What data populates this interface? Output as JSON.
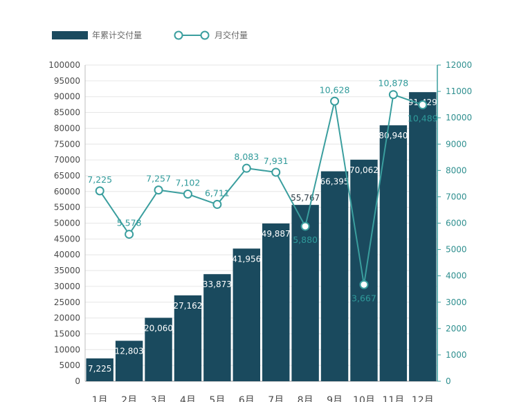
{
  "chart_data": {
    "type": "bar",
    "categories": [
      "1月",
      "2月",
      "3月",
      "4月",
      "5月",
      "6月",
      "7月",
      "8月",
      "9月",
      "10月",
      "11月",
      "12月"
    ],
    "series": [
      {
        "name": "年累计交付量",
        "type": "bar",
        "axis": "left",
        "values": [
          7225,
          12803,
          20060,
          27162,
          33873,
          41956,
          49887,
          55767,
          66395,
          70062,
          80940,
          91429
        ],
        "labels": [
          "7,225",
          "12,803",
          "20,060",
          "27,162",
          "33,873",
          "41,956",
          "49,887",
          "55,767",
          "66,395",
          "70,062",
          "80,940",
          "91,429"
        ],
        "color": "#1a4a5e"
      },
      {
        "name": "月交付量",
        "type": "line",
        "axis": "right",
        "values": [
          7225,
          5578,
          7257,
          7102,
          6711,
          8083,
          7931,
          5880,
          10628,
          3667,
          10878,
          10489
        ],
        "labels": [
          "7,225",
          "5,578",
          "7,257",
          "7,102",
          "6,711",
          "8,083",
          "7,931",
          "5,880",
          "10,628",
          "3,667",
          "10,878",
          "10,489"
        ],
        "color": "#3a9e9e"
      }
    ],
    "ylim_left": [
      0,
      100000
    ],
    "yticks_left": [
      "0",
      "5000",
      "10000",
      "15000",
      "20000",
      "25000",
      "30000",
      "35000",
      "40000",
      "45000",
      "50000",
      "55000",
      "60000",
      "65000",
      "70000",
      "75000",
      "80000",
      "85000",
      "90000",
      "95000",
      "100000"
    ],
    "ylim_right": [
      0,
      12000
    ],
    "yticks_right": [
      "0",
      "1000",
      "2000",
      "3000",
      "4000",
      "5000",
      "6000",
      "7000",
      "8000",
      "9000",
      "10000",
      "11000",
      "12000"
    ],
    "grid": true,
    "legend": "top-left"
  }
}
